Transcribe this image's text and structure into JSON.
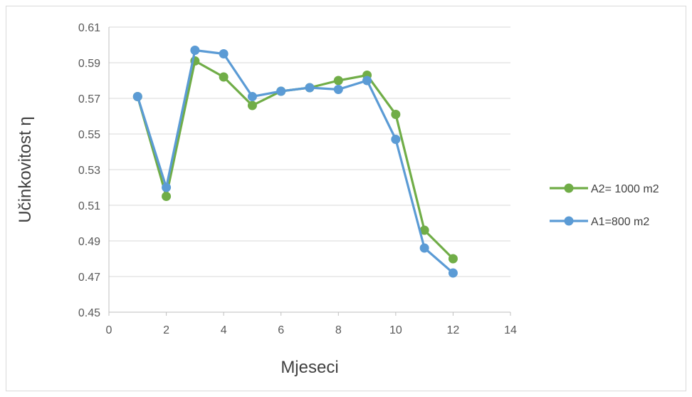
{
  "chart_data": {
    "type": "line",
    "title": "",
    "xlabel": "Mjeseci",
    "ylabel": "Učinkovitost η",
    "xlim": [
      0,
      14
    ],
    "ylim": [
      0.45,
      0.61
    ],
    "xticks": [
      0,
      2,
      4,
      6,
      8,
      10,
      12,
      14
    ],
    "yticks": [
      0.45,
      0.47,
      0.49,
      0.51,
      0.53,
      0.55,
      0.57,
      0.59,
      0.61
    ],
    "xtick_labels": [
      "0",
      "2",
      "4",
      "6",
      "8",
      "10",
      "12",
      "14"
    ],
    "ytick_labels": [
      "0.45",
      "0.47",
      "0.49",
      "0.51",
      "0.53",
      "0.55",
      "0.57",
      "0.59",
      "0.61"
    ],
    "grid": "horizontal",
    "legend_position": "right",
    "series": [
      {
        "name": "A2= 1000 m2",
        "color": "#70ad47",
        "x": [
          1,
          2,
          3,
          4,
          5,
          6,
          7,
          8,
          9,
          10,
          11,
          12
        ],
        "y": [
          0.571,
          0.515,
          0.591,
          0.582,
          0.566,
          0.574,
          0.576,
          0.58,
          0.583,
          0.561,
          0.496,
          0.48
        ]
      },
      {
        "name": "A1=800 m2",
        "color": "#5b9bd5",
        "x": [
          1,
          2,
          3,
          4,
          5,
          6,
          7,
          8,
          9,
          10,
          11,
          12
        ],
        "y": [
          0.571,
          0.52,
          0.597,
          0.595,
          0.571,
          0.574,
          0.576,
          0.575,
          0.58,
          0.547,
          0.486,
          0.472
        ]
      }
    ]
  }
}
